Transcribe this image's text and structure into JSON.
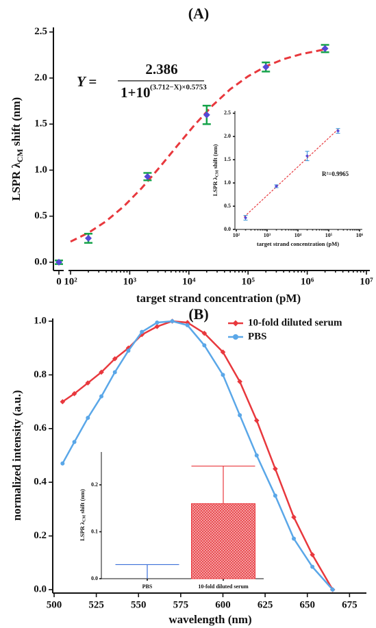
{
  "chart_data": [
    {
      "type": "scatter",
      "title": "(A)",
      "x_label": "target strand concentration (pM)",
      "y_label": {
        "main": "LSPR λ",
        "sub": "CM",
        "rest": " shift (nm)"
      },
      "x_scale": "log",
      "xlim": [
        100,
        10000000
      ],
      "ylim": [
        -0.09,
        2.55
      ],
      "xticks": [
        0,
        {
          "value": 100,
          "label": "10²"
        },
        {
          "value": 1000,
          "label": "10³"
        },
        {
          "value": 10000,
          "label": "10⁴"
        },
        {
          "value": 100000,
          "label": "10⁵"
        },
        {
          "value": 1000000,
          "label": "10⁶"
        },
        {
          "value": 10000000,
          "label": "10⁷"
        }
      ],
      "yticks": [
        {
          "value": 0,
          "label": "0.0"
        },
        {
          "value": 0.5,
          "label": "0.5"
        },
        {
          "value": 1,
          "label": "1.0"
        },
        {
          "value": 1.5,
          "label": "1.5"
        },
        {
          "value": 2,
          "label": "2.0"
        },
        {
          "value": 2.5,
          "label": "2.5"
        }
      ],
      "points": {
        "color": "#5549d6",
        "error_color": "#16a34a",
        "x": [
          0,
          200,
          2000,
          20000,
          200000,
          2000000
        ],
        "values": [
          0,
          0.26,
          0.93,
          1.6,
          2.12,
          2.32
        ],
        "errors": [
          0.02,
          0.05,
          0.04,
          0.1,
          0.05,
          0.04
        ]
      },
      "fit": {
        "color": "#e8383d",
        "x": [
          100,
          200,
          398,
          794,
          1585,
          3162,
          6310,
          12589,
          25119,
          50119,
          100000,
          199526,
          398107,
          794328,
          1995262
        ],
        "values": [
          0.224,
          0.319,
          0.445,
          0.607,
          0.803,
          1.027,
          1.262,
          1.493,
          1.702,
          1.879,
          2.019,
          2.127,
          2.205,
          2.261,
          2.311
        ]
      },
      "equation": {
        "lhs": "Y =",
        "numerator": "2.386",
        "denominator": "1+10",
        "exponent": "(3.712−X)×0.5753"
      }
    },
    {
      "type": "scatter",
      "x_label": "target strand concentration (pM)",
      "y_label": {
        "main": "LSPR λ",
        "sub": "CM",
        "rest": " shift (nm)"
      },
      "x_scale": "log",
      "xlim": [
        100,
        1000000
      ],
      "ylim": [
        0,
        2.55
      ],
      "xticks": [
        {
          "value": 100,
          "label": "10²"
        },
        {
          "value": 1000,
          "label": "10³"
        },
        {
          "value": 10000,
          "label": "10⁴"
        },
        {
          "value": 100000,
          "label": "10⁵"
        },
        {
          "value": 1000000,
          "label": "10⁶"
        }
      ],
      "yticks": [
        {
          "value": 0,
          "label": "0.0"
        },
        {
          "value": 0.5,
          "label": "0.5"
        },
        {
          "value": 1,
          "label": "1.0"
        },
        {
          "value": 1.5,
          "label": "1.5"
        },
        {
          "value": 2,
          "label": "2.0"
        },
        {
          "value": 2.5,
          "label": "2.5"
        }
      ],
      "points": {
        "color": "#5549d6",
        "error_color": "#2b8fd6",
        "x": [
          200,
          2000,
          20000,
          200000
        ],
        "values": [
          0.25,
          0.93,
          1.58,
          2.12
        ],
        "errors": [
          0.05,
          0.03,
          0.1,
          0.05
        ]
      },
      "fit": {
        "color": "#e8383d",
        "x": [
          180,
          220000
        ],
        "values": [
          0.27,
          2.18
        ]
      },
      "annotation": "R²=0.9965"
    },
    {
      "type": "line",
      "title": "(B)",
      "x_label": "wavelength (nm)",
      "y_label": "normalized intensity (a.u.)",
      "xlim": [
        500,
        685
      ],
      "ylim": [
        0,
        1
      ],
      "xticks": [
        500,
        525,
        550,
        575,
        600,
        625,
        650,
        675
      ],
      "yticks": [
        {
          "value": 0,
          "label": "0.0"
        },
        {
          "value": 0.2,
          "label": "0.2"
        },
        {
          "value": 0.4,
          "label": "0.4"
        },
        {
          "value": 0.6,
          "label": "0.6"
        },
        {
          "value": 0.8,
          "label": "0.8"
        },
        {
          "value": 1,
          "label": "1.0"
        }
      ],
      "x": [
        505,
        512,
        520,
        528,
        536,
        544,
        552,
        561,
        570,
        579,
        589,
        600,
        610,
        620,
        631,
        642,
        653,
        665
      ],
      "series": [
        {
          "name": "10-fold diluted serum",
          "color": "#e8383d",
          "marker": "diamond",
          "values": [
            0.7,
            0.73,
            0.77,
            0.81,
            0.86,
            0.9,
            0.95,
            0.98,
            1.0,
            0.995,
            0.955,
            0.885,
            0.775,
            0.63,
            0.45,
            0.27,
            0.13,
            0.0
          ]
        },
        {
          "name": "PBS",
          "color": "#5aa7e8",
          "marker": "circle",
          "values": [
            0.47,
            0.55,
            0.64,
            0.72,
            0.81,
            0.89,
            0.96,
            0.995,
            1.0,
            0.985,
            0.91,
            0.8,
            0.65,
            0.5,
            0.35,
            0.19,
            0.085,
            0.0
          ]
        }
      ]
    },
    {
      "type": "bar",
      "y_label": {
        "main": "LSPR λ",
        "sub": "CM",
        "rest": " shift (nm)"
      },
      "categories": [
        "PBS",
        "10-fold diluted serum"
      ],
      "values": [
        0.0,
        0.16
      ],
      "errors": [
        0.03,
        0.08
      ],
      "colors": [
        "#3a6fd8",
        "#e8383d"
      ],
      "hatch": [
        false,
        true
      ],
      "ylim": [
        0,
        0.27
      ],
      "yticks": [
        {
          "value": 0,
          "label": "0.0"
        },
        {
          "value": 0.1,
          "label": "0.1"
        },
        {
          "value": 0.2,
          "label": "0.2"
        }
      ]
    }
  ]
}
